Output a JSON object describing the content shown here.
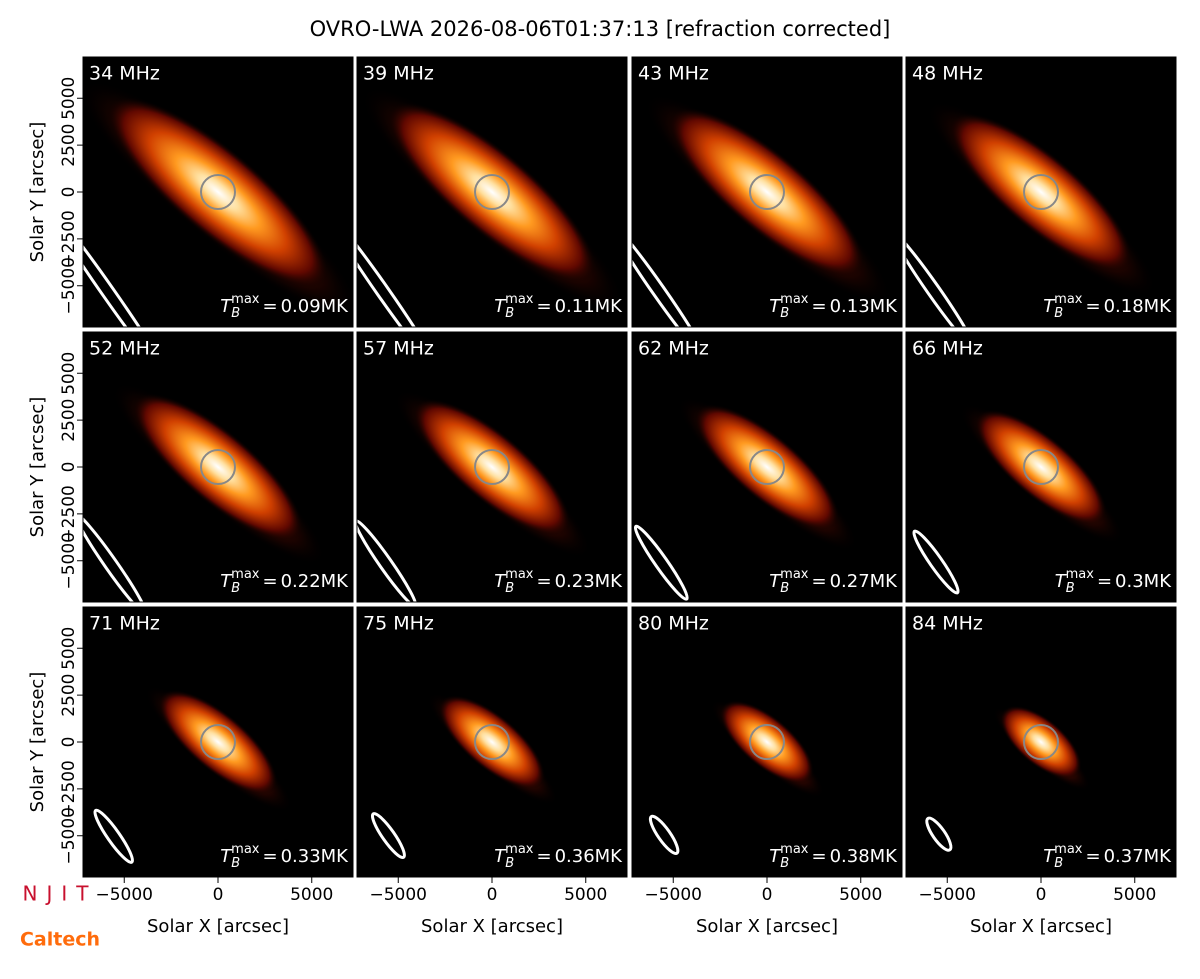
{
  "title": "OVRO-LWA 2026-08-06T01:37:13 [refraction corrected]",
  "axes": {
    "xlabel": "Solar X [arcsec]",
    "ylabel": "Solar Y [arcsec]",
    "xlim": [
      -7200,
      7200
    ],
    "ylim": [
      -7200,
      7200
    ],
    "xticks": [
      {
        "value": -5000,
        "label": "−5000"
      },
      0,
      5000
    ],
    "yticks": [
      {
        "value": -5000,
        "label": "−5000"
      },
      {
        "value": -2500,
        "label": "−2500"
      },
      0,
      2500,
      5000
    ]
  },
  "tb_symbol": {
    "base": "T",
    "sub": "B",
    "sup": "max",
    "equals": "="
  },
  "panels": [
    {
      "freq": "34 MHz",
      "tmax": "0.09MK"
    },
    {
      "freq": "39 MHz",
      "tmax": "0.11MK"
    },
    {
      "freq": "43 MHz",
      "tmax": "0.13MK"
    },
    {
      "freq": "48 MHz",
      "tmax": "0.18MK"
    },
    {
      "freq": "52 MHz",
      "tmax": "0.22MK"
    },
    {
      "freq": "57 MHz",
      "tmax": "0.23MK"
    },
    {
      "freq": "62 MHz",
      "tmax": "0.27MK"
    },
    {
      "freq": "66 MHz",
      "tmax": "0.3MK"
    },
    {
      "freq": "71 MHz",
      "tmax": "0.33MK"
    },
    {
      "freq": "75 MHz",
      "tmax": "0.36MK"
    },
    {
      "freq": "80 MHz",
      "tmax": "0.38MK"
    },
    {
      "freq": "84 MHz",
      "tmax": "0.37MK"
    }
  ],
  "logos": {
    "njit": "NJIT",
    "caltech": "Caltech"
  }
}
